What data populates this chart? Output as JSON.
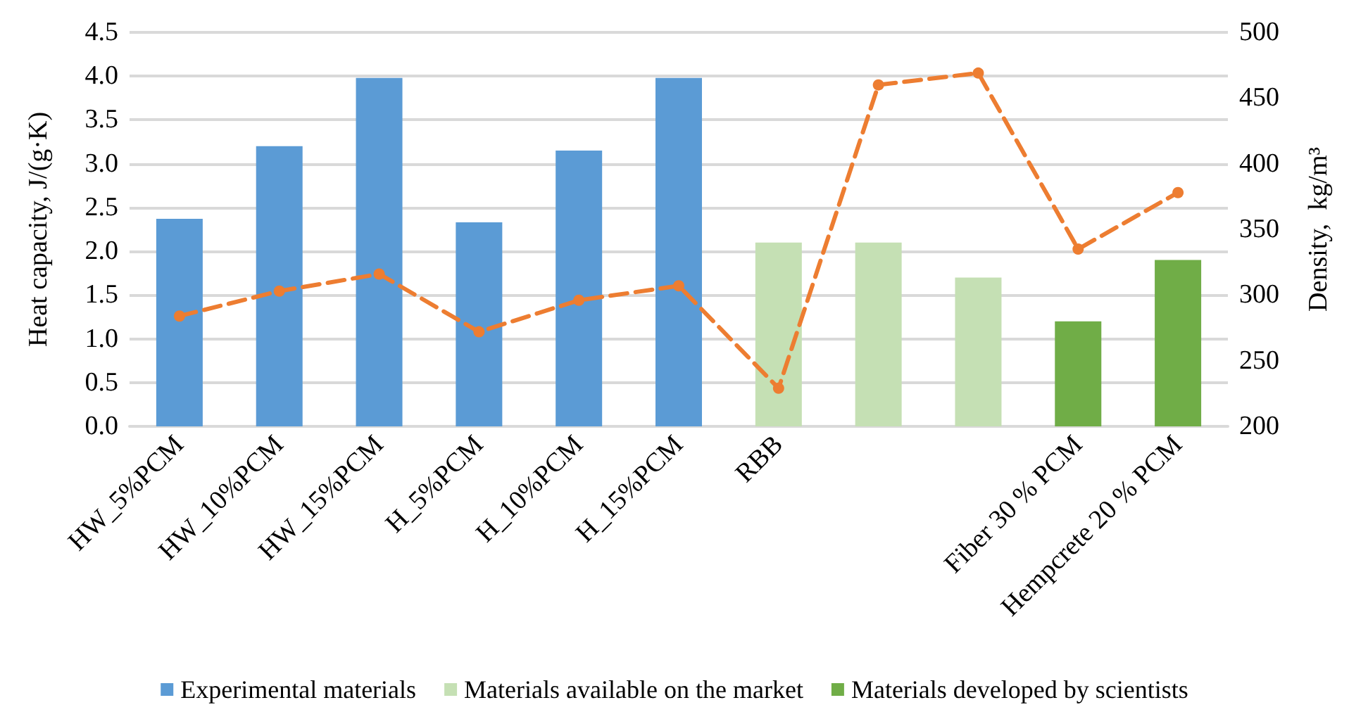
{
  "chart_data": {
    "type": "bar",
    "ylabel": "Heat capacity, J/(g·K)",
    "y2label": "Density,  kg/m³",
    "categories": [
      "HW_5%PCM",
      "HW_10%PCM",
      "HW_15%PCM",
      "H_5%PCM",
      "H_10%PCM",
      "H_15%PCM",
      "RBB",
      null,
      null,
      "Fiber 30 % PCM",
      "Hempcrete 20 % PCM"
    ],
    "series": [
      {
        "name": "Experimental materials",
        "color": "#5b9bd5",
        "values": [
          2.37,
          3.2,
          3.98,
          2.33,
          3.15,
          3.98,
          null,
          null,
          null,
          null,
          null
        ]
      },
      {
        "name": "Materials available on the market",
        "color": "#c5e0b4",
        "values": [
          null,
          null,
          null,
          null,
          null,
          null,
          2.1,
          2.1,
          1.7,
          null,
          null
        ]
      },
      {
        "name": "Materials developed by scientists",
        "color": "#70ad47",
        "values": [
          null,
          null,
          null,
          null,
          null,
          null,
          null,
          null,
          null,
          1.2,
          1.9
        ]
      },
      {
        "type": "line",
        "axis": "y2",
        "color": "#ed7d31",
        "line_style": "dashed",
        "marker": "circle",
        "values": [
          284,
          303,
          316,
          272,
          296,
          307,
          229,
          460,
          469,
          335,
          378
        ]
      }
    ],
    "stacked": true,
    "ylim": [
      0,
      4.5
    ],
    "yticks": [
      {
        "value": 0,
        "label": "0.0"
      },
      0.5,
      {
        "value": 1,
        "label": "1.0"
      },
      1.5,
      {
        "value": 2,
        "label": "2.0"
      },
      2.5,
      {
        "value": 3,
        "label": "3.0"
      },
      3.5,
      {
        "value": 4,
        "label": "4.0"
      },
      4.5
    ],
    "y2lim": [
      200,
      500
    ],
    "y2ticks": [
      200,
      250,
      300,
      350,
      400,
      450,
      500
    ],
    "grid": "y",
    "legend": "bottom"
  }
}
